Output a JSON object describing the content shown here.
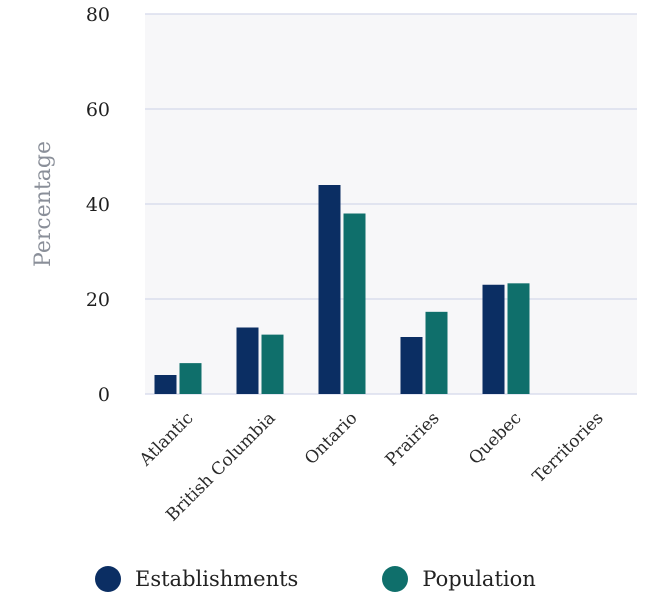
{
  "chart_data": {
    "type": "bar",
    "title": "",
    "xlabel": "",
    "ylabel": "Percentage",
    "ylim": [
      0,
      80
    ],
    "yticks": [
      0,
      20,
      40,
      60,
      80
    ],
    "grid": true,
    "legend_position": "bottom",
    "categories": [
      "Atlantic",
      "British Columbia",
      "Ontario",
      "Prairies",
      "Quebec",
      "Territories"
    ],
    "series": [
      {
        "name": "Establishments",
        "color": "#0b2e63",
        "values": [
          4,
          14,
          44,
          12,
          23,
          0
        ]
      },
      {
        "name": "Population",
        "color": "#0f6f6b",
        "values": [
          6.5,
          12.5,
          38,
          17.3,
          23.3,
          0
        ]
      }
    ]
  }
}
